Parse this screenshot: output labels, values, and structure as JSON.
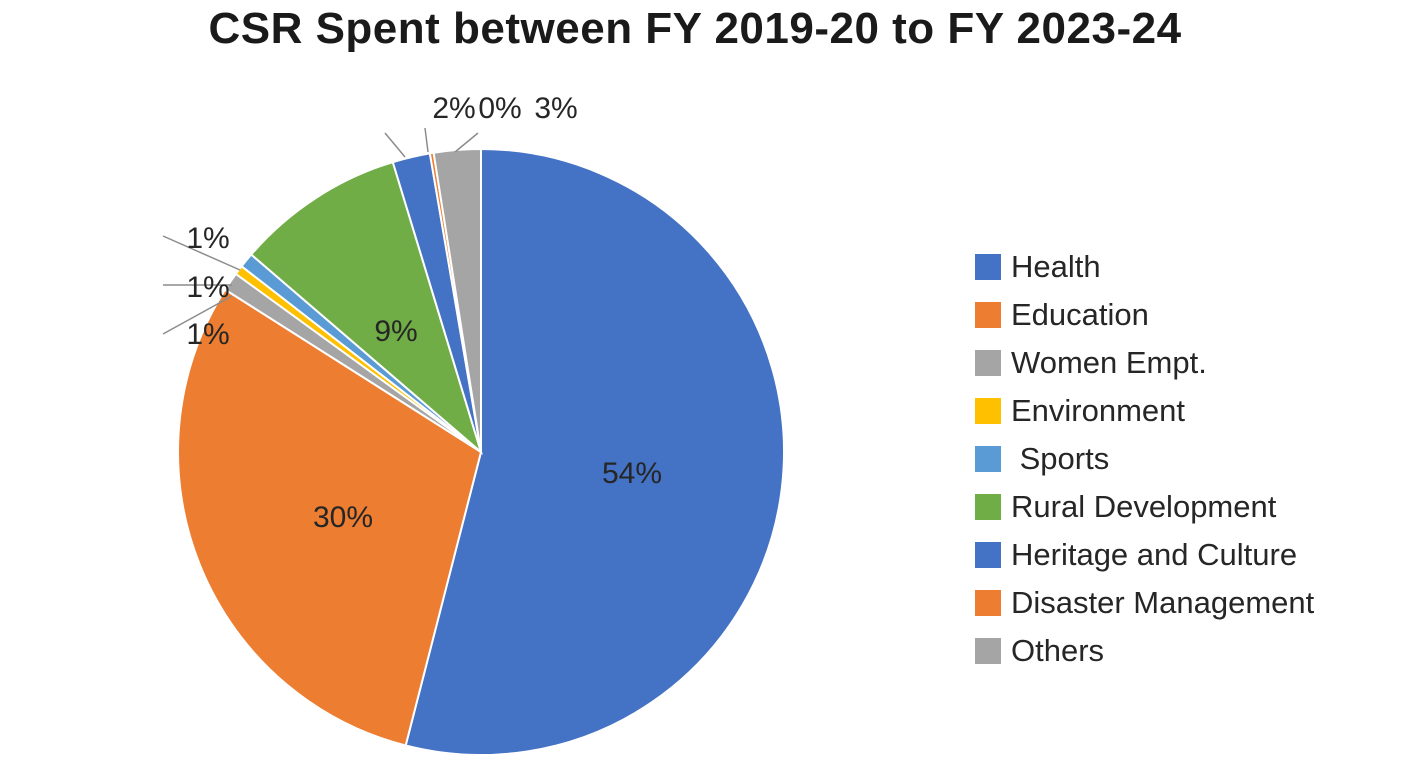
{
  "chart_data": {
    "type": "pie",
    "title": "CSR Spent between FY 2019-20 to FY 2023-24",
    "legend_position": "right",
    "slices": [
      {
        "name": "Health",
        "value": 54,
        "label": "54%",
        "color": "#4472C4"
      },
      {
        "name": "Education",
        "value": 30,
        "label": "30%",
        "color": "#ED7D31"
      },
      {
        "name": "Women Empt.",
        "value": 1,
        "label": "1%",
        "color": "#A5A5A5"
      },
      {
        "name": "Environment",
        "value": 0.5,
        "label": "1%",
        "color": "#FFC000"
      },
      {
        "name": " Sports",
        "value": 0.8,
        "label": "1%",
        "color": "#5B9BD5"
      },
      {
        "name": "Rural Development",
        "value": 9,
        "label": "9%",
        "color": "#70AD47"
      },
      {
        "name": "Heritage and Culture",
        "value": 2,
        "label": "2%",
        "color": "#4472C4"
      },
      {
        "name": "Disaster Management",
        "value": 0.2,
        "label": "0%",
        "color": "#ED7D31"
      },
      {
        "name": "Others",
        "value": 2.5,
        "label": "3%",
        "color": "#A5A5A5"
      }
    ]
  }
}
